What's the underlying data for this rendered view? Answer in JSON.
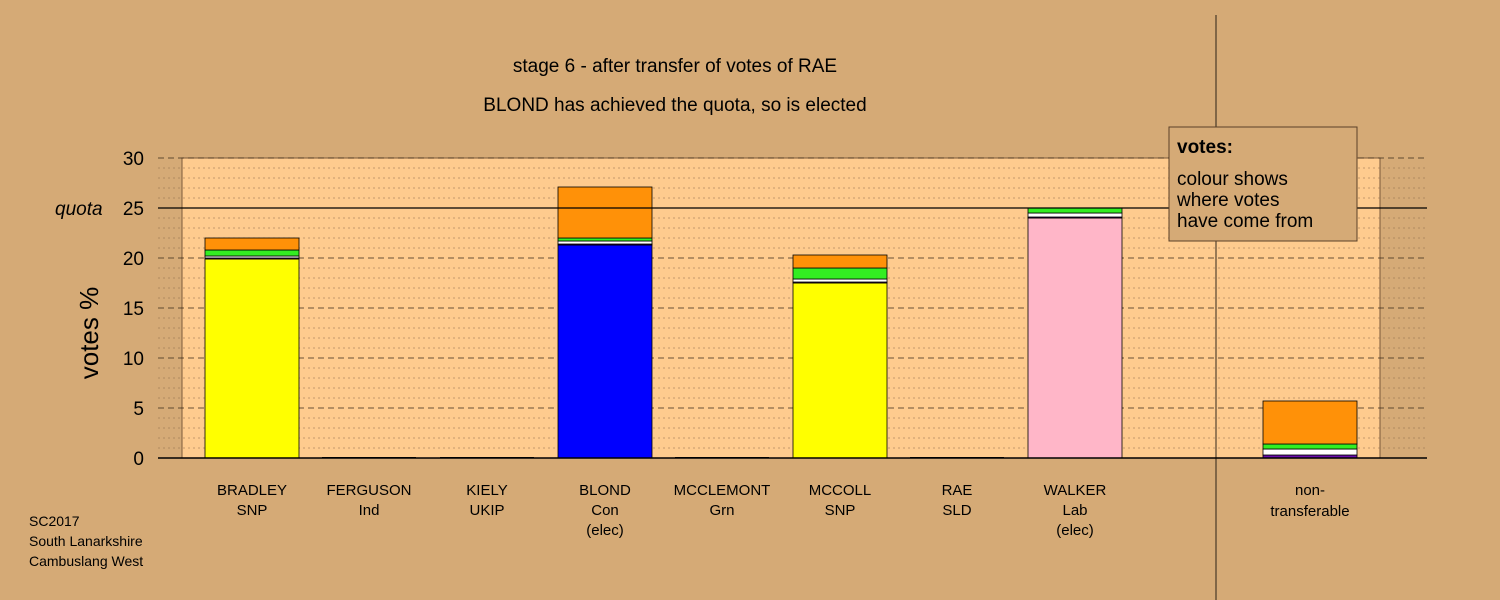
{
  "title_line1": "stage 6 - after transfer of votes of RAE",
  "title_line2": "BLOND has achieved the quota, so is elected",
  "footer": [
    "SC2017",
    "South Lanarkshire",
    "Cambuslang West"
  ],
  "legend": {
    "heading": "votes:",
    "lines": [
      "colour shows",
      "where votes",
      "have come from"
    ]
  },
  "colors": {
    "background": "#d5aa76",
    "plot_area": "#fecb8e",
    "SNP": "#ffff00",
    "Con": "#0000ff",
    "Lab": "#ffb6c8",
    "Grn": "#33ee22",
    "UKIP": "#6a0dad",
    "Ind": "#ffffff",
    "SLD": "#ff9108"
  },
  "chart_data": {
    "type": "bar",
    "stacked": true,
    "ylabel": "votes %",
    "ylim": [
      0,
      30
    ],
    "yticks": [
      0,
      5,
      10,
      15,
      20,
      25,
      30
    ],
    "quota": 25,
    "quota_label": "quota",
    "grid": true,
    "categories": [
      {
        "name": "BRADLEY",
        "party": "SNP",
        "note": ""
      },
      {
        "name": "FERGUSON",
        "party": "Ind",
        "note": ""
      },
      {
        "name": "KIELY",
        "party": "UKIP",
        "note": ""
      },
      {
        "name": "BLOND",
        "party": "Con",
        "note": "(elec)"
      },
      {
        "name": "MCCLEMONT",
        "party": "Grn",
        "note": ""
      },
      {
        "name": "MCCOLL",
        "party": "SNP",
        "note": ""
      },
      {
        "name": "RAE",
        "party": "SLD",
        "note": ""
      },
      {
        "name": "WALKER",
        "party": "Lab",
        "note": "(elec)"
      },
      {
        "name": "non-",
        "party": "transferable",
        "note": ""
      }
    ],
    "bars": [
      {
        "segments": [
          {
            "source": "SNP",
            "value": 19.9
          },
          {
            "source": "UKIP",
            "value": 0.1
          },
          {
            "source": "Ind",
            "value": 0.2
          },
          {
            "source": "Grn",
            "value": 0.6
          },
          {
            "source": "SLD",
            "value": 1.2
          }
        ]
      },
      {
        "segments": []
      },
      {
        "segments": []
      },
      {
        "segments": [
          {
            "source": "Con",
            "value": 21.3
          },
          {
            "source": "UKIP",
            "value": 0.1
          },
          {
            "source": "Ind",
            "value": 0.3
          },
          {
            "source": "Grn",
            "value": 0.3
          },
          {
            "source": "SLD",
            "value": 5.1
          }
        ]
      },
      {
        "segments": []
      },
      {
        "segments": [
          {
            "source": "SNP",
            "value": 17.5
          },
          {
            "source": "UKIP",
            "value": 0.1
          },
          {
            "source": "Ind",
            "value": 0.3
          },
          {
            "source": "Grn",
            "value": 1.1
          },
          {
            "source": "SLD",
            "value": 1.3
          }
        ]
      },
      {
        "segments": []
      },
      {
        "segments": [
          {
            "source": "Lab",
            "value": 24.0
          },
          {
            "source": "UKIP",
            "value": 0.1
          },
          {
            "source": "Ind",
            "value": 0.4
          },
          {
            "source": "Grn",
            "value": 0.5
          }
        ]
      },
      {
        "segments": [
          {
            "source": "UKIP",
            "value": 0.3
          },
          {
            "source": "Ind",
            "value": 0.6
          },
          {
            "source": "Grn",
            "value": 0.5
          },
          {
            "source": "SLD",
            "value": 4.3
          }
        ]
      }
    ]
  }
}
